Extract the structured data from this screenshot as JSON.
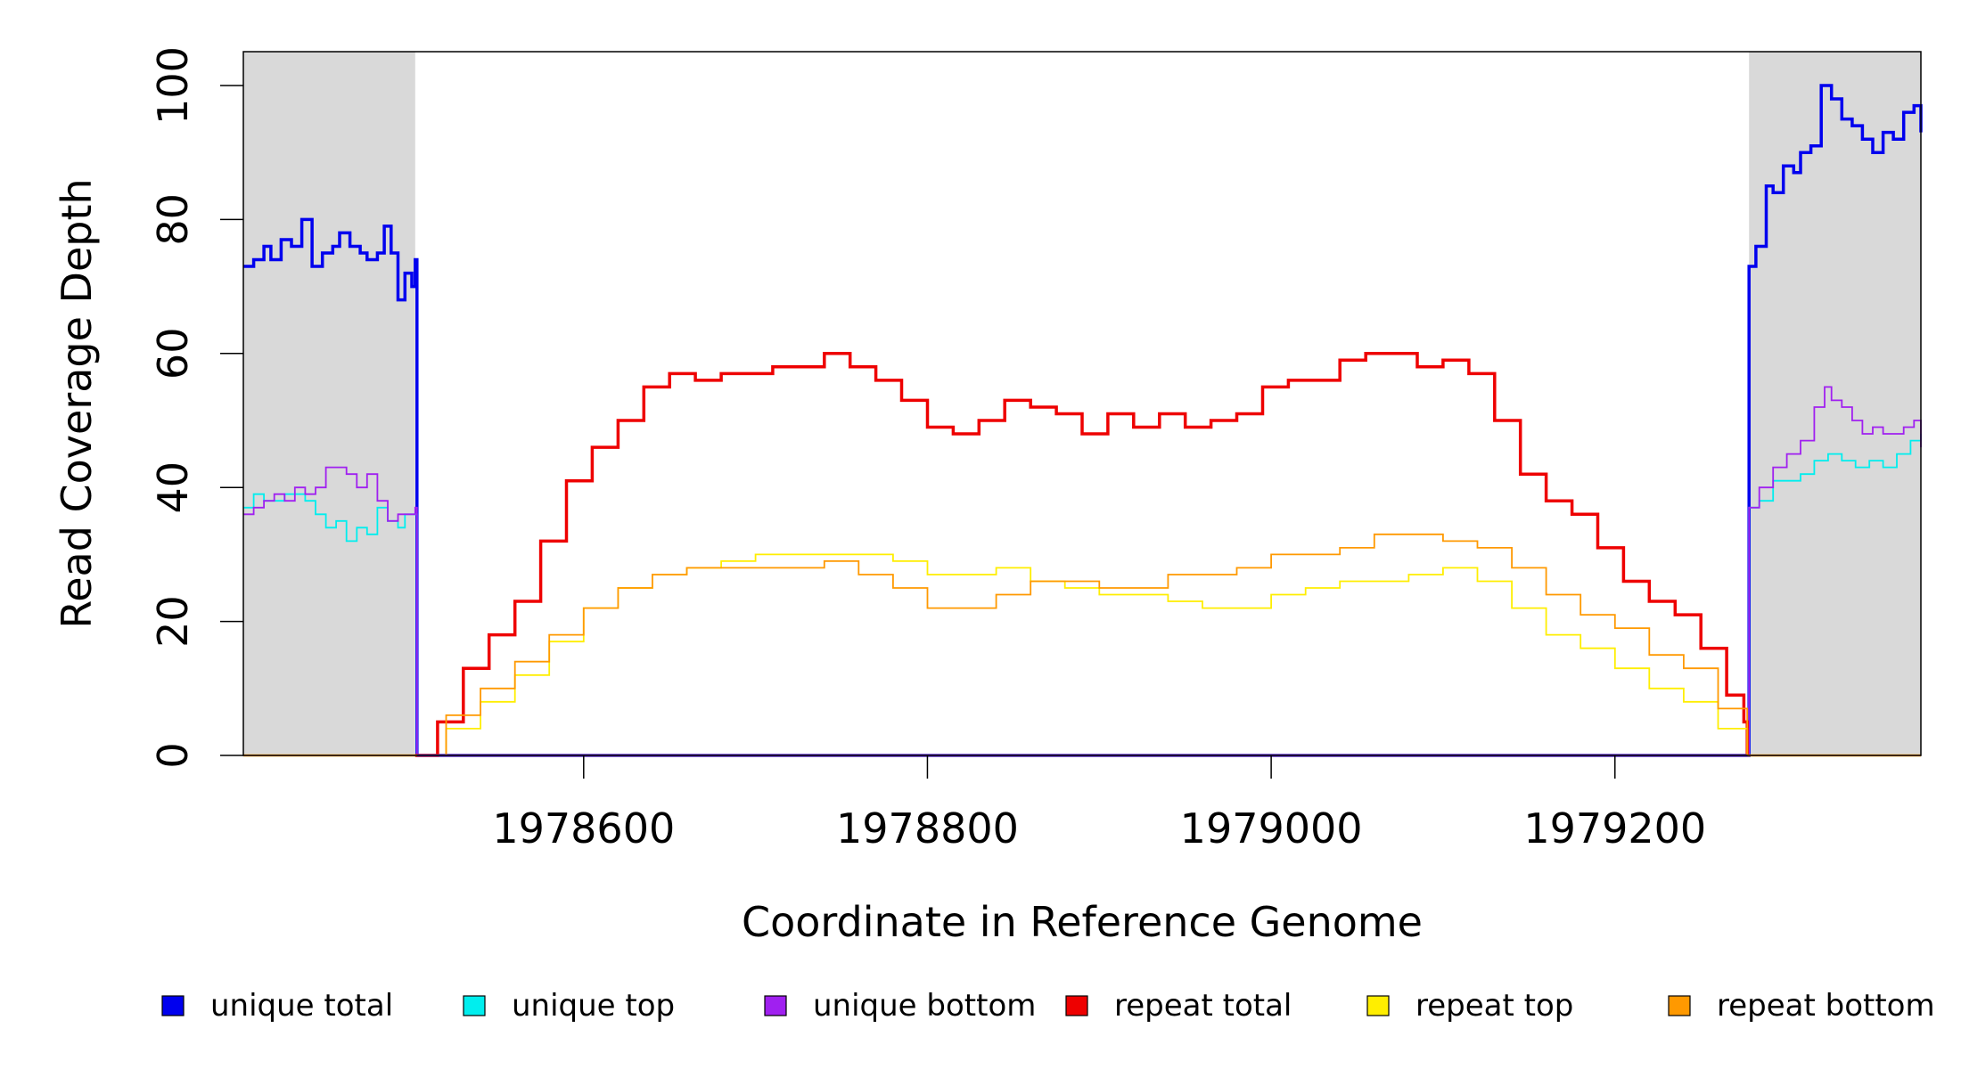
{
  "chart_data": {
    "type": "line",
    "xlabel": "Coordinate in Reference Genome",
    "ylabel": "Read Coverage Depth",
    "xlim": [
      1978402,
      1979378
    ],
    "ylim": [
      0,
      105
    ],
    "x_ticks": [
      1978600,
      1978800,
      1979000,
      1979200
    ],
    "x_tick_labels": [
      "1978600",
      "1978800",
      "1979000",
      "1979200"
    ],
    "y_ticks": [
      0,
      20,
      40,
      60,
      80,
      100
    ],
    "y_tick_labels": [
      "0",
      "20",
      "40",
      "60",
      "80",
      "100"
    ],
    "shaded_regions": [
      [
        1978402,
        1978502
      ],
      [
        1979278,
        1979378
      ]
    ],
    "legend_position": "bottom",
    "series": [
      {
        "name": "unique total",
        "color": "#0000ee",
        "x": [
          1978402,
          1978408,
          1978414,
          1978418,
          1978424,
          1978430,
          1978436,
          1978442,
          1978448,
          1978454,
          1978458,
          1978464,
          1978470,
          1978474,
          1978480,
          1978484,
          1978488,
          1978492,
          1978496,
          1978500,
          1978502,
          1978503,
          1979277,
          1979278,
          1979282,
          1979288,
          1979292,
          1979298,
          1979304,
          1979308,
          1979314,
          1979320,
          1979326,
          1979332,
          1979338,
          1979344,
          1979350,
          1979356,
          1979362,
          1979368,
          1979374,
          1979378
        ],
        "y": [
          73,
          74,
          76,
          74,
          77,
          76,
          80,
          73,
          75,
          76,
          78,
          76,
          75,
          74,
          75,
          79,
          75,
          68,
          72,
          70,
          74,
          0,
          0,
          73,
          76,
          85,
          84,
          88,
          87,
          90,
          91,
          100,
          98,
          95,
          94,
          92,
          90,
          93,
          92,
          96,
          97,
          93
        ]
      },
      {
        "name": "unique top",
        "color": "#00eeee",
        "x": [
          1978402,
          1978408,
          1978414,
          1978420,
          1978426,
          1978432,
          1978438,
          1978444,
          1978450,
          1978456,
          1978462,
          1978468,
          1978474,
          1978480,
          1978486,
          1978492,
          1978496,
          1978502,
          1978503,
          1979277,
          1979278,
          1979284,
          1979292,
          1979300,
          1979308,
          1979316,
          1979324,
          1979332,
          1979340,
          1979348,
          1979356,
          1979364,
          1979372,
          1979378
        ],
        "y": [
          37,
          39,
          38,
          38,
          39,
          39,
          38,
          36,
          34,
          35,
          32,
          34,
          33,
          37,
          35,
          34,
          36,
          36,
          0,
          0,
          37,
          38,
          41,
          41,
          42,
          44,
          45,
          44,
          43,
          44,
          43,
          45,
          47,
          48
        ]
      },
      {
        "name": "unique bottom",
        "color": "#a020f0",
        "x": [
          1978402,
          1978408,
          1978414,
          1978420,
          1978426,
          1978432,
          1978438,
          1978444,
          1978450,
          1978456,
          1978462,
          1978468,
          1978474,
          1978480,
          1978486,
          1978492,
          1978496,
          1978502,
          1978503,
          1979277,
          1979278,
          1979284,
          1979292,
          1979300,
          1979308,
          1979316,
          1979322,
          1979326,
          1979332,
          1979338,
          1979344,
          1979350,
          1979356,
          1979362,
          1979368,
          1979374,
          1979378
        ],
        "y": [
          36,
          37,
          38,
          39,
          38,
          40,
          39,
          40,
          43,
          43,
          42,
          40,
          42,
          38,
          35,
          36,
          36,
          37,
          0,
          0,
          37,
          40,
          43,
          45,
          47,
          52,
          55,
          53,
          52,
          50,
          48,
          49,
          48,
          48,
          49,
          50,
          46
        ]
      },
      {
        "name": "repeat total",
        "color": "#ee0000",
        "x": [
          1978502,
          1978515,
          1978530,
          1978545,
          1978560,
          1978575,
          1978590,
          1978605,
          1978620,
          1978635,
          1978650,
          1978665,
          1978680,
          1978695,
          1978710,
          1978725,
          1978740,
          1978755,
          1978770,
          1978785,
          1978800,
          1978815,
          1978830,
          1978845,
          1978860,
          1978875,
          1978890,
          1978905,
          1978920,
          1978935,
          1978950,
          1978965,
          1978980,
          1978995,
          1979010,
          1979025,
          1979040,
          1979055,
          1979070,
          1979085,
          1979100,
          1979115,
          1979130,
          1979145,
          1979160,
          1979175,
          1979190,
          1979205,
          1979220,
          1979235,
          1979250,
          1979265,
          1979275,
          1979277
        ],
        "y": [
          0,
          5,
          13,
          18,
          23,
          32,
          41,
          46,
          50,
          55,
          57,
          56,
          57,
          57,
          58,
          58,
          60,
          58,
          56,
          53,
          49,
          48,
          50,
          53,
          52,
          51,
          48,
          51,
          49,
          51,
          49,
          50,
          51,
          55,
          56,
          56,
          59,
          60,
          60,
          58,
          59,
          57,
          50,
          42,
          38,
          36,
          31,
          26,
          23,
          21,
          16,
          9,
          5,
          0
        ]
      },
      {
        "name": "repeat top",
        "color": "#ffee00",
        "x": [
          1978502,
          1978520,
          1978540,
          1978560,
          1978580,
          1978600,
          1978620,
          1978640,
          1978660,
          1978680,
          1978700,
          1978720,
          1978740,
          1978760,
          1978780,
          1978800,
          1978820,
          1978840,
          1978860,
          1978880,
          1978900,
          1978920,
          1978940,
          1978960,
          1978980,
          1979000,
          1979020,
          1979040,
          1979060,
          1979080,
          1979100,
          1979120,
          1979140,
          1979160,
          1979180,
          1979200,
          1979220,
          1979240,
          1979260,
          1979277
        ],
        "y": [
          0,
          4,
          8,
          12,
          17,
          22,
          25,
          27,
          28,
          29,
          30,
          30,
          30,
          30,
          29,
          27,
          27,
          28,
          26,
          25,
          24,
          24,
          23,
          22,
          22,
          24,
          25,
          26,
          26,
          27,
          28,
          26,
          22,
          18,
          16,
          13,
          10,
          8,
          4,
          0
        ]
      },
      {
        "name": "repeat bottom",
        "color": "#ff9900",
        "x": [
          1978502,
          1978520,
          1978540,
          1978560,
          1978580,
          1978600,
          1978620,
          1978640,
          1978660,
          1978680,
          1978700,
          1978720,
          1978740,
          1978760,
          1978780,
          1978800,
          1978820,
          1978840,
          1978860,
          1978880,
          1978900,
          1978920,
          1978940,
          1978960,
          1978980,
          1979000,
          1979020,
          1979040,
          1979060,
          1979080,
          1979100,
          1979120,
          1979140,
          1979160,
          1979180,
          1979200,
          1979220,
          1979240,
          1979260,
          1979277
        ],
        "y": [
          0,
          6,
          10,
          14,
          18,
          22,
          25,
          27,
          28,
          28,
          28,
          28,
          29,
          27,
          25,
          22,
          22,
          24,
          26,
          26,
          25,
          25,
          27,
          27,
          28,
          30,
          30,
          31,
          33,
          33,
          32,
          31,
          28,
          24,
          21,
          19,
          15,
          13,
          7,
          0
        ]
      }
    ]
  }
}
